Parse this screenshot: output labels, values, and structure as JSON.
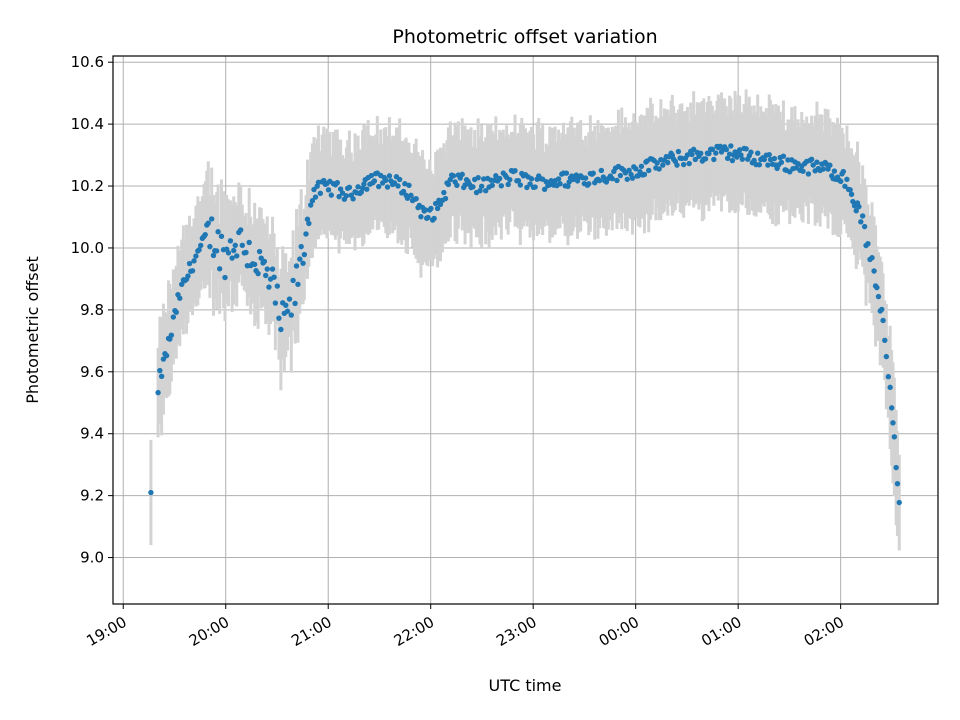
{
  "chart_data": {
    "type": "scatter",
    "title": "Photometric offset variation",
    "xlabel": "UTC time",
    "ylabel": "Photometric offset",
    "xlim_hours": [
      18.9,
      26.95
    ],
    "ylim": [
      8.85,
      10.62
    ],
    "grid": true,
    "x_tick_labels": [
      "19:00",
      "20:00",
      "21:00",
      "22:00",
      "23:00",
      "00:00",
      "01:00",
      "02:00"
    ],
    "x_tick_hours": [
      19,
      20,
      21,
      22,
      23,
      24,
      25,
      26
    ],
    "y_ticks": [
      9.0,
      9.2,
      9.4,
      9.6,
      9.8,
      10.0,
      10.2,
      10.4,
      10.6
    ],
    "y_tick_labels": [
      "9.0",
      "9.2",
      "9.4",
      "9.6",
      "9.8",
      "10.0",
      "10.2",
      "10.4",
      "10.6"
    ],
    "point_color": "#1f77b4",
    "errorbar_color": "#d3d3d3",
    "trend_hours": [
      19.27,
      19.35,
      19.45,
      19.55,
      19.7,
      19.85,
      20.0,
      20.1,
      20.2,
      20.3,
      20.45,
      20.55,
      20.65,
      20.75,
      20.85,
      21.0,
      21.2,
      21.4,
      21.6,
      21.8,
      21.95,
      22.05,
      22.2,
      22.5,
      22.8,
      23.0,
      23.3,
      23.6,
      24.0,
      24.3,
      24.6,
      24.9,
      25.2,
      25.5,
      25.8,
      26.0,
      26.1,
      26.2,
      26.3,
      26.4,
      26.5,
      26.58
    ],
    "trend_values": [
      9.21,
      9.57,
      9.7,
      9.85,
      9.97,
      10.05,
      9.97,
      10.03,
      10.0,
      9.96,
      9.88,
      9.75,
      9.82,
      9.98,
      10.18,
      10.2,
      10.17,
      10.22,
      10.22,
      10.18,
      10.1,
      10.12,
      10.22,
      10.2,
      10.23,
      10.21,
      10.22,
      10.23,
      10.25,
      10.28,
      10.3,
      10.31,
      10.29,
      10.27,
      10.26,
      10.24,
      10.18,
      10.1,
      9.95,
      9.8,
      9.5,
      9.15
    ],
    "error_halfwidth_range": [
      0.12,
      0.2
    ]
  }
}
